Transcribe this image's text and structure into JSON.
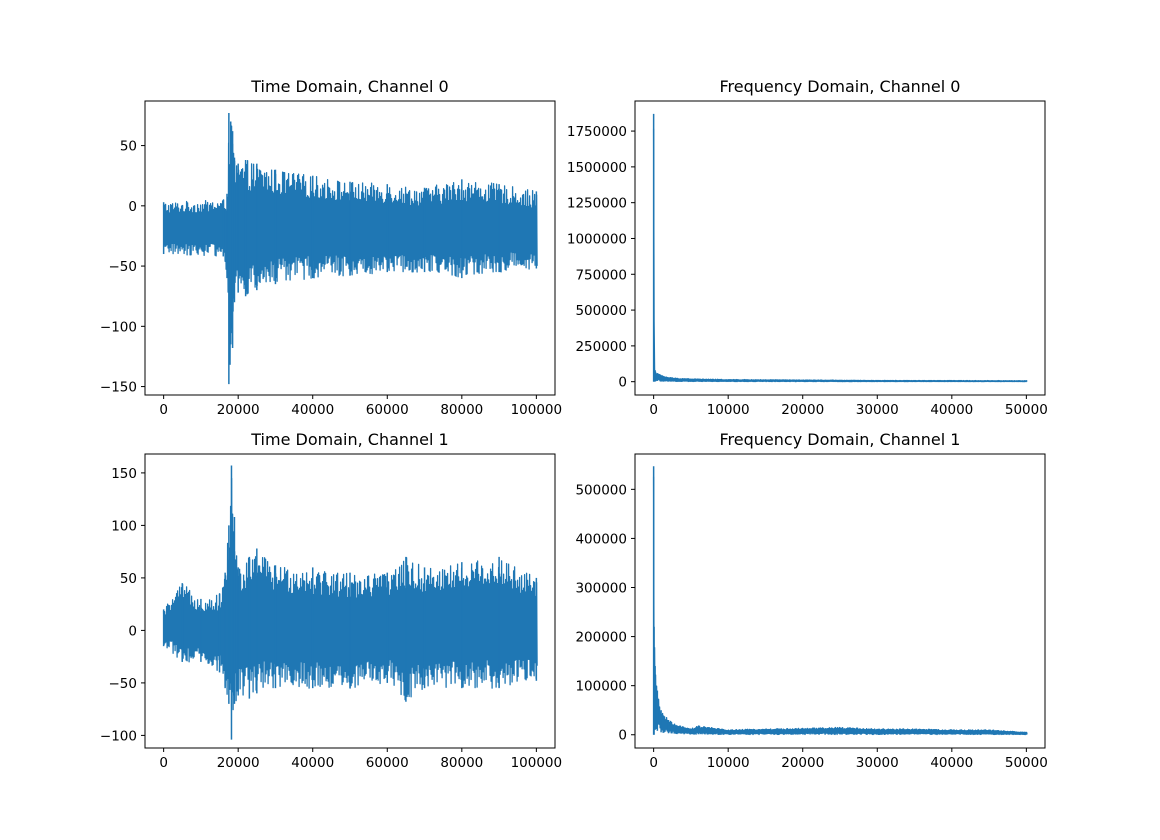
{
  "figure": {
    "background": "#ffffff",
    "line_color": "#1f77b4"
  },
  "chart_data": [
    {
      "type": "line",
      "title": "Time Domain, Channel 0",
      "xlabel": "",
      "ylabel": "",
      "xlim": [
        -5000,
        105000
      ],
      "ylim": [
        -157,
        87
      ],
      "xticks": [
        0,
        20000,
        40000,
        60000,
        80000,
        100000
      ],
      "xtick_labels": [
        "0",
        "20000",
        "40000",
        "60000",
        "80000",
        "100000"
      ],
      "yticks": [
        -150,
        -100,
        -50,
        0,
        50
      ],
      "ytick_labels": [
        "−150",
        "−100",
        "−50",
        "0",
        "50"
      ],
      "grid": false,
      "series": [
        {
          "color": "#1f77b4",
          "x": [
            0,
            16000,
            17000,
            17500,
            18000,
            18500,
            19000,
            20000,
            22000,
            25000,
            30000,
            40000,
            50000,
            60000,
            70000,
            80000,
            90000,
            100000
          ],
          "upper": [
            3,
            5,
            10,
            77,
            70,
            62,
            40,
            35,
            38,
            35,
            30,
            25,
            20,
            18,
            15,
            22,
            18,
            12
          ],
          "lower": [
            -40,
            -42,
            -60,
            -148,
            -115,
            -118,
            -80,
            -72,
            -75,
            -70,
            -65,
            -60,
            -58,
            -55,
            -55,
            -60,
            -55,
            -52
          ]
        }
      ]
    },
    {
      "type": "line",
      "title": "Frequency Domain, Channel 0",
      "xlabel": "",
      "ylabel": "",
      "xlim": [
        -2500,
        52500
      ],
      "ylim": [
        -93000,
        1960000
      ],
      "xticks": [
        0,
        10000,
        20000,
        30000,
        40000,
        50000
      ],
      "xtick_labels": [
        "0",
        "10000",
        "20000",
        "30000",
        "40000",
        "50000"
      ],
      "yticks": [
        0,
        250000,
        500000,
        750000,
        1000000,
        1250000,
        1500000,
        1750000
      ],
      "ytick_labels": [
        "0",
        "250000",
        "500000",
        "750000",
        "1000000",
        "1250000",
        "1500000",
        "1750000"
      ],
      "grid": false,
      "series": [
        {
          "color": "#1f77b4",
          "x": [
            0,
            50,
            200,
            500,
            1000,
            2000,
            3000,
            5000,
            10000,
            20000,
            30000,
            40000,
            50000
          ],
          "upper": [
            1870000,
            120000,
            80000,
            60000,
            45000,
            30000,
            25000,
            20000,
            15000,
            12000,
            9000,
            8000,
            7000
          ],
          "lower": [
            0,
            0,
            5000,
            5000,
            3000,
            2000,
            1500,
            1000,
            800,
            500,
            300,
            300,
            200
          ]
        }
      ]
    },
    {
      "type": "line",
      "title": "Time Domain, Channel 1",
      "xlabel": "",
      "ylabel": "",
      "xlim": [
        -5000,
        105000
      ],
      "ylim": [
        -112,
        168
      ],
      "xticks": [
        0,
        20000,
        40000,
        60000,
        80000,
        100000
      ],
      "xtick_labels": [
        "0",
        "20000",
        "40000",
        "60000",
        "80000",
        "100000"
      ],
      "yticks": [
        -100,
        -50,
        0,
        50,
        100,
        150
      ],
      "ytick_labels": [
        "−100",
        "−50",
        "0",
        "50",
        "100",
        "150"
      ],
      "grid": false,
      "series": [
        {
          "color": "#1f77b4",
          "x": [
            0,
            5000,
            10000,
            15000,
            16500,
            17500,
            18200,
            19000,
            20000,
            23000,
            25000,
            30000,
            40000,
            50000,
            60000,
            65000,
            70000,
            80000,
            90000,
            100000
          ],
          "upper": [
            20,
            45,
            30,
            35,
            55,
            100,
            157,
            108,
            60,
            70,
            78,
            62,
            60,
            55,
            55,
            70,
            60,
            65,
            70,
            50
          ],
          "lower": [
            -15,
            -30,
            -30,
            -40,
            -55,
            -70,
            -104,
            -70,
            -62,
            -65,
            -60,
            -55,
            -55,
            -55,
            -50,
            -68,
            -55,
            -55,
            -55,
            -48
          ]
        }
      ]
    },
    {
      "type": "line",
      "title": "Frequency Domain, Channel 1",
      "xlabel": "",
      "ylabel": "",
      "xlim": [
        -2500,
        52500
      ],
      "ylim": [
        -27000,
        572000
      ],
      "xticks": [
        0,
        10000,
        20000,
        30000,
        40000,
        50000
      ],
      "xtick_labels": [
        "0",
        "10000",
        "20000",
        "30000",
        "40000",
        "50000"
      ],
      "yticks": [
        0,
        100000,
        200000,
        300000,
        400000,
        500000
      ],
      "ytick_labels": [
        "0",
        "100000",
        "200000",
        "300000",
        "400000",
        "500000"
      ],
      "grid": false,
      "series": [
        {
          "color": "#1f77b4",
          "x": [
            0,
            60,
            200,
            500,
            1000,
            2000,
            3000,
            5000,
            6000,
            10000,
            15000,
            20000,
            25000,
            30000,
            35000,
            40000,
            45000,
            50000
          ],
          "upper": [
            547000,
            220000,
            140000,
            90000,
            50000,
            30000,
            20000,
            12000,
            18000,
            10000,
            12000,
            13000,
            15000,
            12000,
            12000,
            10000,
            10000,
            5000
          ],
          "lower": [
            0,
            0,
            10000,
            8000,
            5000,
            3000,
            2000,
            1000,
            1000,
            500,
            500,
            500,
            500,
            500,
            500,
            500,
            500,
            200
          ]
        }
      ]
    }
  ]
}
